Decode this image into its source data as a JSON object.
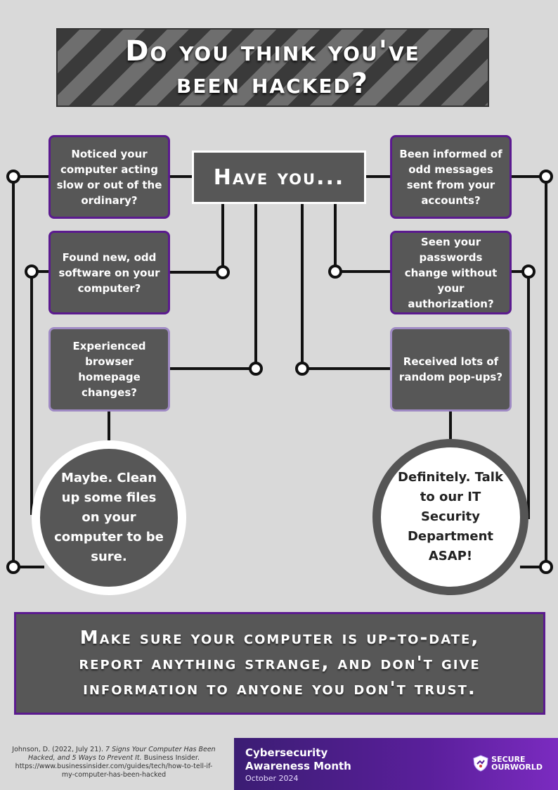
{
  "title": "Do you think you've\nbeen hacked?",
  "center_label": "Have you...",
  "left_items": [
    "Noticed your computer acting slow or out of the ordinary?",
    "Found new, odd software on your computer?",
    "Experienced browser homepage changes?"
  ],
  "right_items": [
    "Been informed of odd messages sent from your accounts?",
    "Seen your passwords change without your authorization?",
    "Received lots of random pop-ups?"
  ],
  "maybe_text": "Maybe. Clean up some files on your computer to be sure.",
  "definitely_text": "Definitely. Talk to our IT Security Department ASAP!",
  "bottom_message": "Make sure your computer is up-to-date,\nreport anything strange, and don't give\ninformation to anyone you don't trust.",
  "citation": {
    "prefix": "Johnson, D. (2022, July 21). ",
    "italic": "7 Signs Your Computer Has Been Hacked, and 5 Ways to Prevent It.",
    "suffix": " Business Insider. https://www.businessinsider.com/guides/tech/how-to-tell-if-my-computer-has-been-hacked"
  },
  "footer": {
    "title": "Cybersecurity\nAwareness Month",
    "date": "October 2024",
    "logo_text": "SECURE\nOURWORLD",
    "logo_icon": "shield-icon"
  },
  "colors": {
    "background": "#d9d9d9",
    "box_fill": "#575757",
    "dark_purple": "#5b1a8f",
    "light_purple": "#9f8ac4",
    "wire": "#111111"
  }
}
